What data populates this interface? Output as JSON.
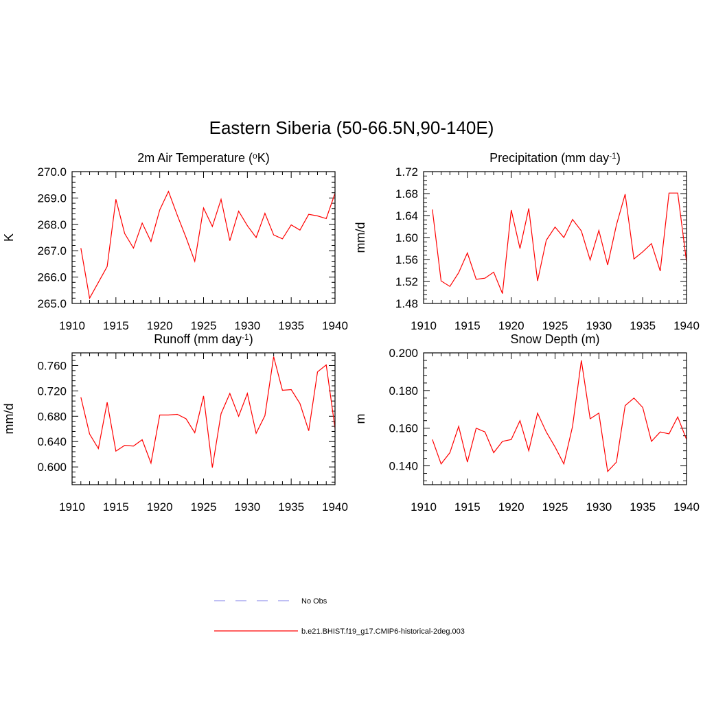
{
  "title": "Eastern Siberia (50-66.5N,90-140E)",
  "colors": {
    "model": "#ff0000",
    "obs": "#9999ee"
  },
  "legend": [
    {
      "label": "No Obs",
      "style": "dashed",
      "color": "#9999ee"
    },
    {
      "label": "b.e21.BHIST.f19_g17.CMIP6-historical-2deg.003",
      "style": "solid",
      "color": "#ff0000"
    }
  ],
  "chart_data": [
    {
      "type": "line",
      "title_pre": "2m Air Temperature (",
      "title_sup1": "o",
      "title_post": "K)",
      "title_sup2": "",
      "title_end": "",
      "ylabel": "K",
      "xlim": [
        1910,
        1940
      ],
      "ylim": [
        265.0,
        270.0
      ],
      "xticks": [
        "1910",
        "1915",
        "1920",
        "1925",
        "1930",
        "1935",
        "1940"
      ],
      "yticks": [
        "265.0",
        "266.0",
        "267.0",
        "268.0",
        "269.0",
        "270.0"
      ],
      "x": [
        1911,
        1912,
        1913,
        1914,
        1915,
        1916,
        1917,
        1918,
        1919,
        1920,
        1921,
        1922,
        1923,
        1924,
        1925,
        1926,
        1927,
        1928,
        1929,
        1930,
        1931,
        1932,
        1933,
        1934,
        1935,
        1936,
        1937,
        1938,
        1939,
        1940
      ],
      "series": [
        {
          "values": [
            267.1,
            265.2,
            265.8,
            266.4,
            268.95,
            267.65,
            267.1,
            268.05,
            267.35,
            268.55,
            269.25,
            268.35,
            267.5,
            266.6,
            268.62,
            267.92,
            268.95,
            267.38,
            268.5,
            267.95,
            267.5,
            268.42,
            267.6,
            267.45,
            267.98,
            267.78,
            268.38,
            268.32,
            268.22,
            269.18
          ]
        }
      ]
    },
    {
      "type": "line",
      "title_pre": "Precipitation (mm day",
      "title_sup1": "-1",
      "title_post": ")",
      "title_sup2": "",
      "title_end": "",
      "ylabel": "mm/d",
      "xlim": [
        1910,
        1940
      ],
      "ylim": [
        1.48,
        1.72
      ],
      "xticks": [
        "1910",
        "1915",
        "1920",
        "1925",
        "1930",
        "1935",
        "1940"
      ],
      "yticks": [
        "1.48",
        "1.52",
        "1.56",
        "1.60",
        "1.64",
        "1.68",
        "1.72"
      ],
      "x": [
        1911,
        1912,
        1913,
        1914,
        1915,
        1916,
        1917,
        1918,
        1919,
        1920,
        1921,
        1922,
        1923,
        1924,
        1925,
        1926,
        1927,
        1928,
        1929,
        1930,
        1931,
        1932,
        1933,
        1934,
        1935,
        1936,
        1937,
        1938,
        1939,
        1940
      ],
      "series": [
        {
          "values": [
            1.651,
            1.521,
            1.511,
            1.536,
            1.572,
            1.524,
            1.526,
            1.537,
            1.498,
            1.65,
            1.58,
            1.653,
            1.521,
            1.595,
            1.619,
            1.6,
            1.633,
            1.612,
            1.559,
            1.613,
            1.55,
            1.623,
            1.679,
            1.561,
            1.574,
            1.589,
            1.539,
            1.681,
            1.681,
            1.556
          ]
        }
      ]
    },
    {
      "type": "line",
      "title_pre": "Runoff (mm day",
      "title_sup1": "-1",
      "title_post": ")",
      "title_sup2": "",
      "title_end": "",
      "ylabel": "mm/d",
      "xlim": [
        1910,
        1940
      ],
      "ylim": [
        0.572,
        0.78
      ],
      "xticks": [
        "1910",
        "1915",
        "1920",
        "1925",
        "1930",
        "1935",
        "1940"
      ],
      "yticks": [
        "0.600",
        "0.640",
        "0.680",
        "0.720",
        "0.760"
      ],
      "x": [
        1911,
        1912,
        1913,
        1914,
        1915,
        1916,
        1917,
        1918,
        1919,
        1920,
        1921,
        1922,
        1923,
        1924,
        1925,
        1926,
        1927,
        1928,
        1929,
        1930,
        1931,
        1932,
        1933,
        1934,
        1935,
        1936,
        1937,
        1938,
        1939,
        1940
      ],
      "series": [
        {
          "values": [
            0.71,
            0.652,
            0.629,
            0.702,
            0.625,
            0.634,
            0.633,
            0.643,
            0.606,
            0.682,
            0.682,
            0.683,
            0.676,
            0.654,
            0.712,
            0.599,
            0.684,
            0.716,
            0.68,
            0.716,
            0.653,
            0.681,
            0.774,
            0.721,
            0.722,
            0.7,
            0.657,
            0.75,
            0.761,
            0.661
          ]
        }
      ]
    },
    {
      "type": "line",
      "title_pre": "Snow Depth (m)",
      "title_sup1": "",
      "title_post": "",
      "title_sup2": "",
      "title_end": "",
      "ylabel": "m",
      "xlim": [
        1910,
        1940
      ],
      "ylim": [
        0.13,
        0.2
      ],
      "xticks": [
        "1910",
        "1915",
        "1920",
        "1925",
        "1930",
        "1935",
        "1940"
      ],
      "yticks": [
        "0.140",
        "0.160",
        "0.180",
        "0.200"
      ],
      "x": [
        1911,
        1912,
        1913,
        1914,
        1915,
        1916,
        1917,
        1918,
        1919,
        1920,
        1921,
        1922,
        1923,
        1924,
        1925,
        1926,
        1927,
        1928,
        1929,
        1930,
        1931,
        1932,
        1933,
        1934,
        1935,
        1936,
        1937,
        1938,
        1939,
        1940
      ],
      "series": [
        {
          "values": [
            0.154,
            0.141,
            0.147,
            0.161,
            0.142,
            0.16,
            0.158,
            0.147,
            0.153,
            0.154,
            0.164,
            0.148,
            0.168,
            0.158,
            0.15,
            0.141,
            0.161,
            0.196,
            0.165,
            0.168,
            0.137,
            0.142,
            0.172,
            0.176,
            0.171,
            0.153,
            0.158,
            0.157,
            0.166,
            0.154
          ]
        }
      ]
    }
  ]
}
